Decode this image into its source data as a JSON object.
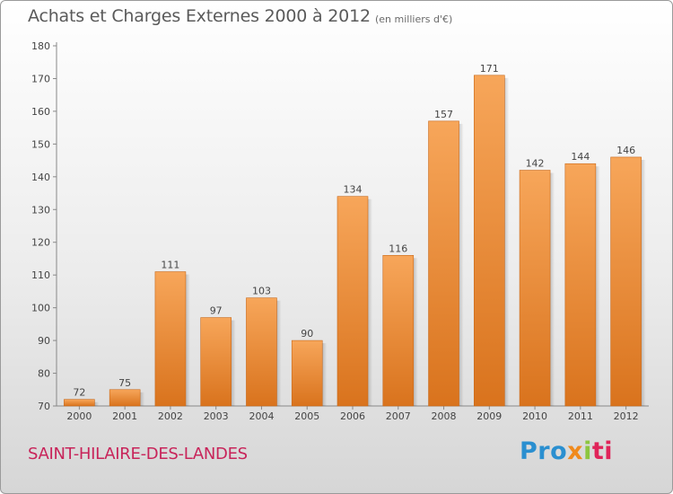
{
  "header": {
    "title": "Achats et Charges Externes 2000 à 2012",
    "subtitle": "(en milliers d'€)"
  },
  "footer": {
    "place": "SAINT-HILAIRE-DES-LANDES",
    "logo": [
      "Pro",
      "x",
      "i",
      "ti"
    ]
  },
  "colors": {
    "bar_top": "#f7a65a",
    "bar_bottom": "#d9731d",
    "place_text": "#c8245a"
  },
  "chart_data": {
    "type": "bar",
    "title": "Achats et Charges Externes 2000 à 2012",
    "subtitle": "(en milliers d'€)",
    "categories": [
      "2000",
      "2001",
      "2002",
      "2003",
      "2004",
      "2005",
      "2006",
      "2007",
      "2008",
      "2009",
      "2010",
      "2011",
      "2012"
    ],
    "values": [
      72,
      75,
      111,
      97,
      103,
      90,
      134,
      116,
      157,
      171,
      142,
      144,
      146
    ],
    "ylim": [
      70,
      180
    ],
    "yticks": [
      70,
      80,
      90,
      100,
      110,
      120,
      130,
      140,
      150,
      160,
      170,
      180
    ],
    "grid": false,
    "data_labels": true
  }
}
